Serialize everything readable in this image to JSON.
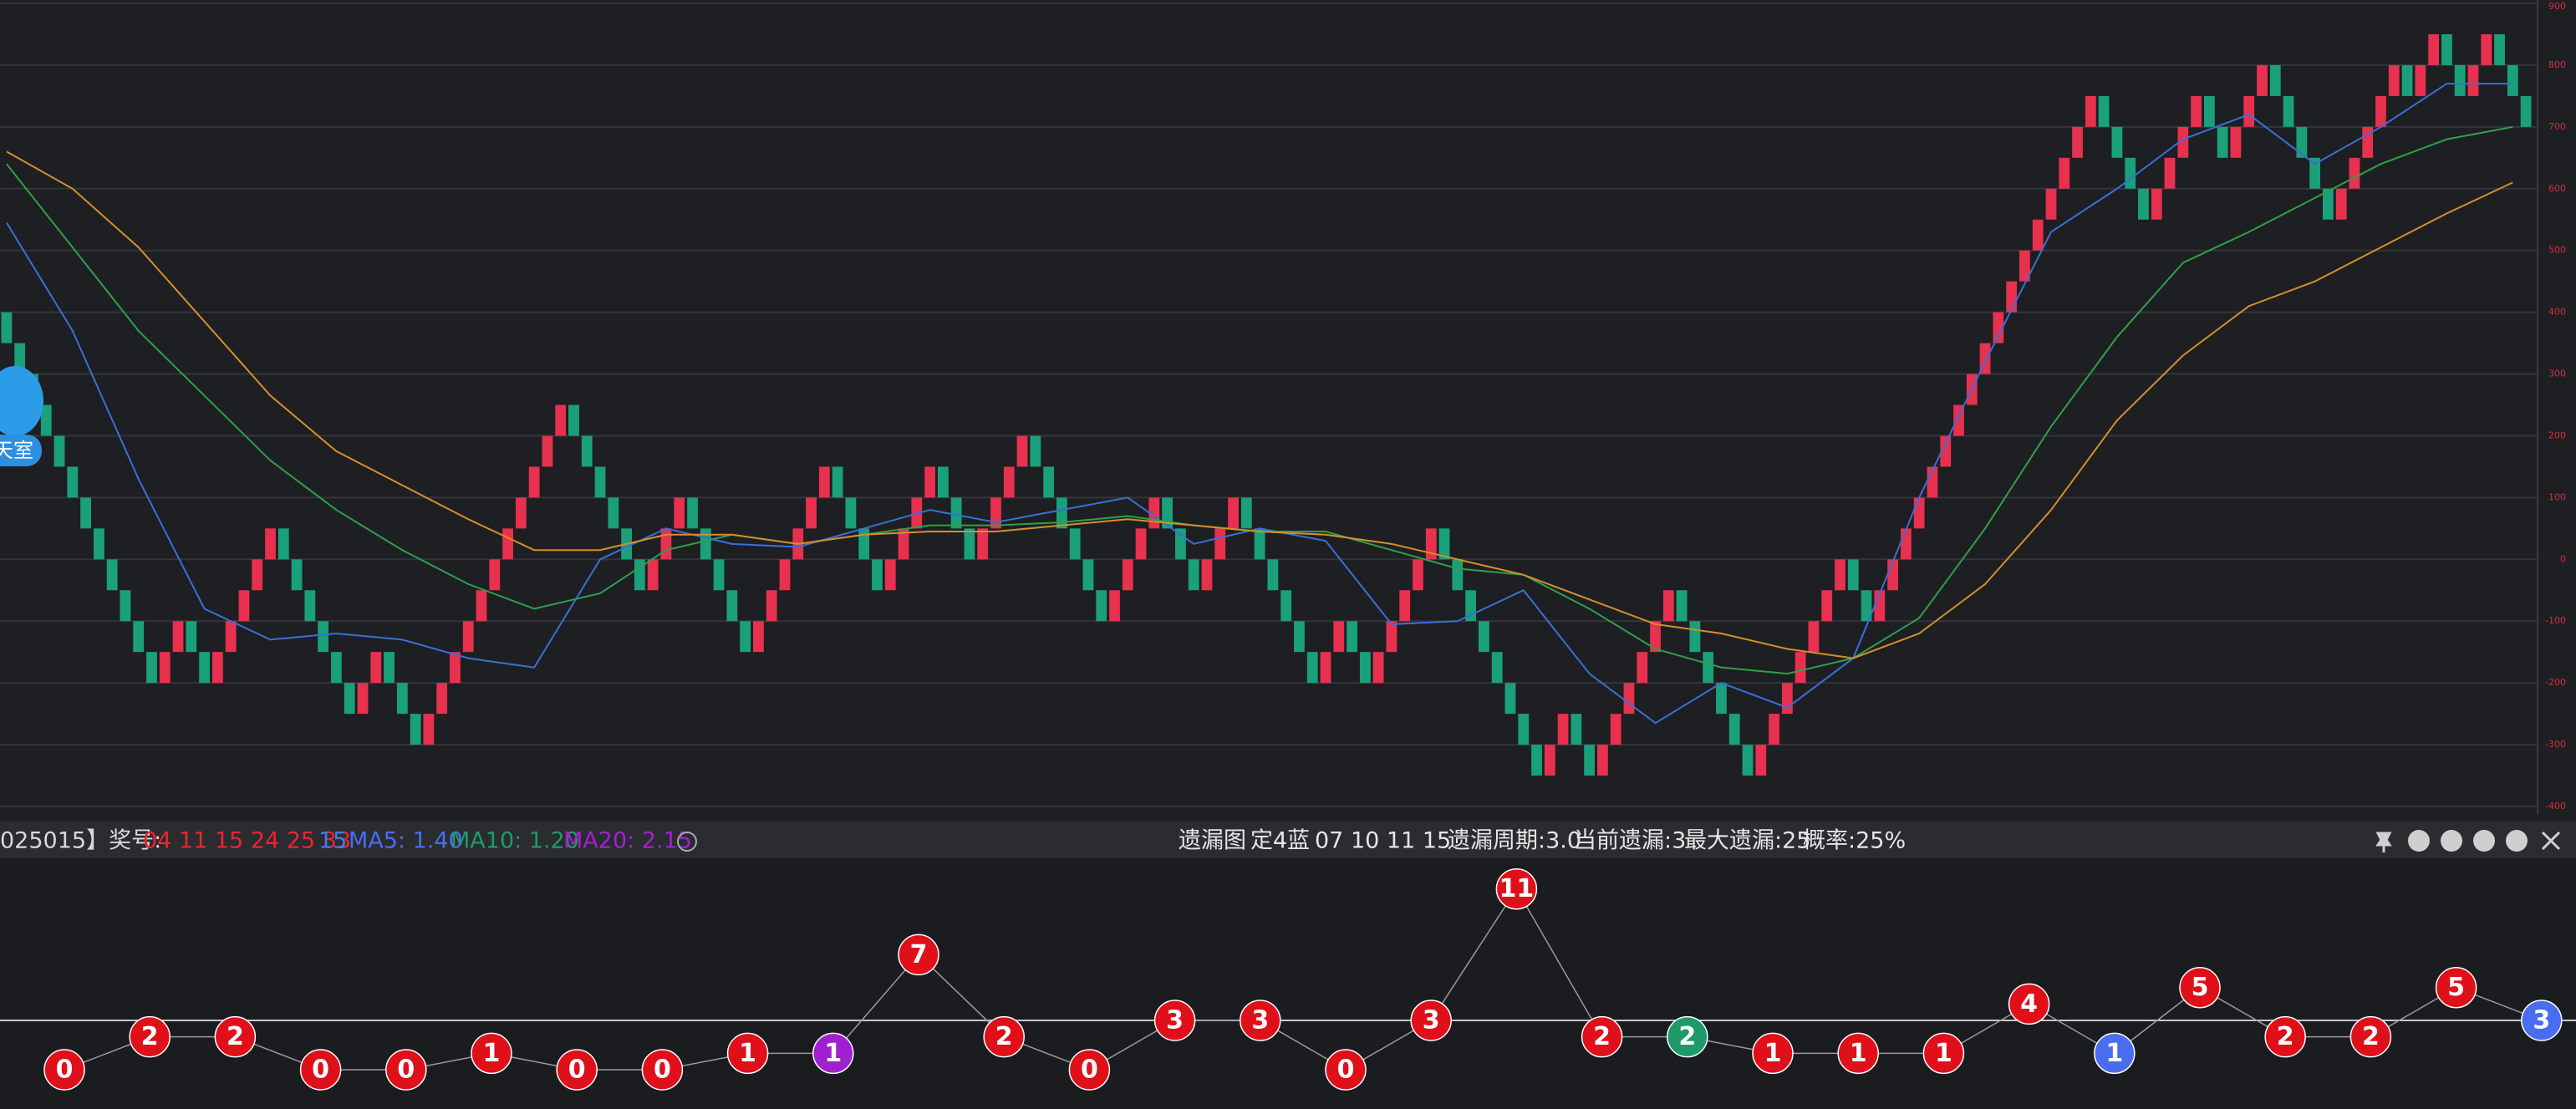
{
  "chart_data": [
    {
      "type": "renko",
      "up_color": "#e8304f",
      "down_color": "#1aa07a",
      "values": [
        400,
        350,
        300,
        250,
        200,
        150,
        100,
        50,
        0,
        -50,
        -100,
        -150,
        -200,
        -150,
        -100,
        -150,
        -200,
        -150,
        -100,
        -50,
        0,
        50,
        0,
        -50,
        -100,
        -150,
        -200,
        -250,
        -200,
        -150,
        -200,
        -250,
        -300,
        -250,
        -200,
        -150,
        -100,
        -50,
        0,
        50,
        100,
        150,
        200,
        250,
        200,
        150,
        100,
        50,
        0,
        -50,
        0,
        50,
        100,
        50,
        0,
        -50,
        -100,
        -150,
        -100,
        -50,
        0,
        50,
        100,
        150,
        100,
        50,
        0,
        -50,
        0,
        50,
        100,
        150,
        100,
        50,
        0,
        50,
        100,
        150,
        200,
        150,
        100,
        50,
        0,
        -50,
        -100,
        -50,
        0,
        50,
        100,
        50,
        0,
        -50,
        0,
        50,
        100,
        50,
        0,
        -50,
        -100,
        -150,
        -200,
        -150,
        -100,
        -150,
        -200,
        -150,
        -100,
        -50,
        0,
        50,
        0,
        -50,
        -100,
        -150,
        -200,
        -250,
        -300,
        -350,
        -300,
        -250,
        -300,
        -350,
        -300,
        -250,
        -200,
        -150,
        -100,
        -50,
        -100,
        -150,
        -200,
        -250,
        -300,
        -350,
        -300,
        -250,
        -200,
        -150,
        -100,
        -50,
        0,
        -50,
        -100,
        -50,
        0,
        50,
        100,
        150,
        200,
        250,
        300,
        350,
        400,
        450,
        500,
        550,
        600,
        650,
        700,
        750,
        700,
        650,
        600,
        550,
        600,
        650,
        700,
        750,
        700,
        650,
        700,
        750,
        800,
        750,
        700,
        650,
        600,
        550,
        600,
        650,
        700,
        750,
        800,
        750,
        800,
        850,
        800,
        750,
        800,
        850,
        800,
        750,
        700
      ],
      "series": [
        {
          "color": "#3a6fd8",
          "x": [
            0,
            5,
            10,
            15,
            20,
            25,
            30,
            35,
            40,
            45,
            50,
            55,
            60,
            65,
            70,
            75,
            80,
            85,
            90,
            95,
            100,
            105,
            110,
            115,
            120,
            125,
            130,
            135,
            140,
            145,
            150,
            155,
            160,
            165,
            170,
            175,
            180,
            185,
            190
          ],
          "values": [
            545,
            370,
            130,
            -80,
            -130,
            -120,
            -130,
            -160,
            -175,
            0,
            50,
            25,
            20,
            50,
            80,
            60,
            80,
            100,
            25,
            50,
            30,
            -105,
            -100,
            -50,
            -185,
            -265,
            -200,
            -240,
            -160,
            100,
            320,
            530,
            600,
            680,
            720,
            640,
            700,
            770,
            770
          ]
        },
        {
          "color": "#2fa04a",
          "x": [
            0,
            5,
            10,
            15,
            20,
            25,
            30,
            35,
            40,
            45,
            50,
            55,
            60,
            65,
            70,
            75,
            80,
            85,
            90,
            95,
            100,
            105,
            110,
            115,
            120,
            125,
            130,
            135,
            140,
            145,
            150,
            155,
            160,
            165,
            170,
            175,
            180,
            185,
            190
          ],
          "values": [
            640,
            505,
            370,
            265,
            160,
            80,
            15,
            -40,
            -80,
            -55,
            15,
            40,
            25,
            40,
            55,
            55,
            60,
            70,
            55,
            45,
            45,
            15,
            -15,
            -25,
            -80,
            -145,
            -175,
            -185,
            -160,
            -95,
            50,
            215,
            360,
            480,
            530,
            585,
            640,
            680,
            700
          ]
        },
        {
          "color": "#d4902a",
          "x": [
            0,
            5,
            10,
            15,
            20,
            25,
            30,
            35,
            40,
            45,
            50,
            55,
            60,
            65,
            70,
            75,
            80,
            85,
            90,
            95,
            100,
            105,
            110,
            115,
            120,
            125,
            130,
            135,
            140,
            145,
            150,
            155,
            160,
            165,
            170,
            175,
            180,
            185,
            190
          ],
          "values": [
            660,
            600,
            505,
            385,
            265,
            175,
            120,
            65,
            15,
            15,
            40,
            40,
            25,
            40,
            45,
            45,
            55,
            65,
            55,
            45,
            40,
            25,
            0,
            -25,
            -65,
            -105,
            -120,
            -145,
            -160,
            -120,
            -40,
            80,
            225,
            330,
            410,
            450,
            505,
            560,
            610
          ]
        }
      ],
      "ylim": [
        -400,
        900
      ],
      "yticks": [
        900,
        800,
        700,
        600,
        500,
        400,
        300,
        200,
        100,
        0,
        -100,
        -200,
        -300,
        -400
      ],
      "grid": true
    },
    {
      "type": "omission",
      "values": [
        0,
        2,
        2,
        0,
        0,
        1,
        0,
        0,
        1,
        1,
        7,
        2,
        0,
        3,
        3,
        0,
        3,
        11,
        2,
        2,
        1,
        1,
        1,
        4,
        1,
        5,
        2,
        2,
        5,
        3
      ],
      "colors": [
        "#e0101a",
        "#e0101a",
        "#e0101a",
        "#e0101a",
        "#e0101a",
        "#e0101a",
        "#e0101a",
        "#e0101a",
        "#e0101a",
        "#a020d0",
        "#e0101a",
        "#e0101a",
        "#e0101a",
        "#e0101a",
        "#e0101a",
        "#e0101a",
        "#e0101a",
        "#e0101a",
        "#e0101a",
        "#1e9a6a",
        "#e0101a",
        "#e0101a",
        "#e0101a",
        "#e0101a",
        "#4a6cf0",
        "#e0101a",
        "#e0101a",
        "#e0101a",
        "#e0101a",
        "#4a6cf0"
      ],
      "reference_line": 3
    }
  ],
  "info_bar": {
    "issue": "025015】奖号:",
    "numbers": "04 11 15 24 25 33",
    "blue": "15",
    "ma5": "MA5: 1.40",
    "ma10": "MA10: 1.20",
    "ma20": "MA20: 2.15",
    "chart_name": "遗漏图",
    "pattern": "定4蓝",
    "balls": "07 10 11 15",
    "cycle": "遗漏周期:3.0",
    "current": "当前遗漏:3",
    "max": "最大遗漏:25",
    "prob": "概率:25%"
  },
  "widget_label": "天室"
}
